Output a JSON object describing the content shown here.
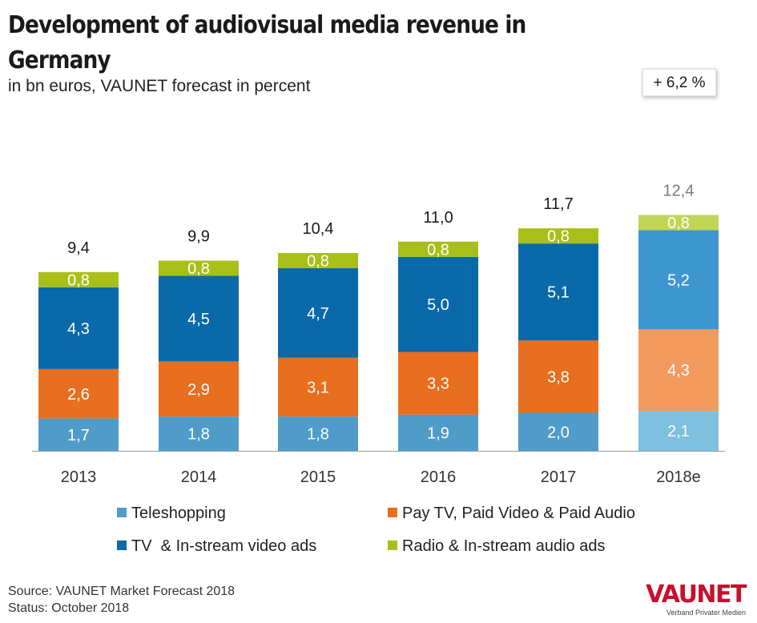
{
  "title": "Development of audiovisual media revenue in Germany",
  "subtitle": "in bn euros, VAUNET forecast in percent",
  "forecast_badge": "+ 6,2 %",
  "footer": {
    "source": "Source: VAUNET Market Forecast 2018",
    "status": "Status: October 2018"
  },
  "logo": {
    "text": "VAUNET",
    "tagline": "Verband Privater Medien"
  },
  "colors": {
    "teleshopping": "#4f9cc9",
    "pay_tv": "#e86f1f",
    "tv_ads": "#0a69a8",
    "radio": "#a8bf1a",
    "teleshopping_forecast": "#7fbfe0",
    "pay_tv_forecast": "#f29a5e",
    "tv_ads_forecast": "#3e96cf",
    "radio_forecast": "#c0d456"
  },
  "chart_data": {
    "type": "bar",
    "stacked": true,
    "categories": [
      "2013",
      "2014",
      "2015",
      "2016",
      "2017",
      "2018e"
    ],
    "forecast_category": "2018e",
    "series": [
      {
        "name": "Teleshopping",
        "values": [
          1.7,
          1.8,
          1.8,
          1.9,
          2.0,
          2.1
        ],
        "labels": [
          "1,7",
          "1,8",
          "1,8",
          "1,9",
          "2,0",
          "2,1"
        ]
      },
      {
        "name": "Pay TV, Paid Video & Paid Audio",
        "values": [
          2.6,
          2.9,
          3.1,
          3.3,
          3.8,
          4.3
        ],
        "labels": [
          "2,6",
          "2,9",
          "3,1",
          "3,3",
          "3,8",
          "4,3"
        ]
      },
      {
        "name": "TV  & In-stream video ads",
        "values": [
          4.3,
          4.5,
          4.7,
          5.0,
          5.1,
          5.2
        ],
        "labels": [
          "4,3",
          "4,5",
          "4,7",
          "5,0",
          "5,1",
          "5,2"
        ]
      },
      {
        "name": "Radio & In-stream audio ads",
        "values": [
          0.8,
          0.8,
          0.8,
          0.8,
          0.8,
          0.8
        ],
        "labels": [
          "0,8",
          "0,8",
          "0,8",
          "0,8",
          "0,8",
          "0,8"
        ]
      }
    ],
    "totals": [
      "9,4",
      "9,9",
      "10,4",
      "11,0",
      "11,7",
      "12,4"
    ],
    "ylim": [
      0,
      16.5
    ],
    "xlabel": "",
    "ylabel": "",
    "grid": false,
    "legend_position": "bottom"
  }
}
